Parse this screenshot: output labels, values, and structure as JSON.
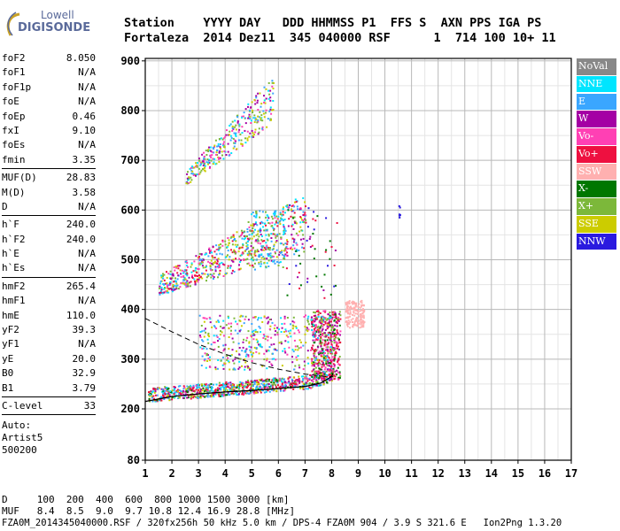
{
  "logo": {
    "line1": "Lowell",
    "line2": "DIGISONDE"
  },
  "header": {
    "labels": "Station    YYYY DAY   DDD HHMMSS P1  FFS S  AXN PPS IGA PS",
    "values": "Fortaleza  2014 Dez11  345 040000 RSF      1  714 100 10+ 11"
  },
  "params_group1": [
    {
      "name": "foF2",
      "value": "8.050"
    },
    {
      "name": "foF1",
      "value": "N/A"
    },
    {
      "name": "foF1p",
      "value": "N/A"
    },
    {
      "name": "foE",
      "value": "N/A"
    },
    {
      "name": "foEp",
      "value": "0.46"
    },
    {
      "name": "fxI",
      "value": "9.10"
    },
    {
      "name": "foEs",
      "value": "N/A"
    },
    {
      "name": "fmin",
      "value": "3.35"
    }
  ],
  "params_group2": [
    {
      "name": "MUF(D)",
      "value": "28.83"
    },
    {
      "name": "M(D)",
      "value": "3.58"
    },
    {
      "name": "D",
      "value": "N/A"
    }
  ],
  "params_group3": [
    {
      "name": "h`F",
      "value": "240.0"
    },
    {
      "name": "h`F2",
      "value": "240.0"
    },
    {
      "name": "h`E",
      "value": "N/A"
    },
    {
      "name": "h`Es",
      "value": "N/A"
    }
  ],
  "params_group4": [
    {
      "name": "hmF2",
      "value": "265.4"
    },
    {
      "name": "hmF1",
      "value": "N/A"
    },
    {
      "name": "hmE",
      "value": "110.0"
    },
    {
      "name": "yF2",
      "value": "39.3"
    },
    {
      "name": "yF1",
      "value": "N/A"
    },
    {
      "name": "yE",
      "value": "20.0"
    },
    {
      "name": "B0",
      "value": "32.9"
    },
    {
      "name": "B1",
      "value": "3.79"
    }
  ],
  "params_group5": [
    {
      "name": "C-level",
      "value": "33"
    }
  ],
  "autoscale": {
    "line1": "Auto:",
    "line2": "Artist5",
    "line3": "500200"
  },
  "footer": {
    "line1": "D     100  200  400  600  800 1000 1500 3000 [km]",
    "line2": "MUF   8.4  8.5  9.0  9.7 10.8 12.4 16.9 28.8 [MHz]",
    "line3": "FZA0M_2014345040000.RSF / 320fx256h 50 kHz 5.0 km / DPS-4 FZA0M 904 / 3.9 S 321.6 E   Ion2Png 1.3.20"
  },
  "colors": {
    "NoVal": "#888888",
    "NNE": "#00e5ff",
    "E": "#3aa6ff",
    "W": "#a400a4",
    "Vo-": "#ff40b4",
    "Vo+": "#ee1040",
    "SSW": "#ffb0b0",
    "X-": "#007700",
    "X+": "#7cb83a",
    "SSE": "#cccc00",
    "NNW": "#2a1adf"
  },
  "chart_data": {
    "type": "scatter",
    "xlim": [
      1,
      17
    ],
    "ylim": [
      80,
      900
    ],
    "x_ticks": [
      1,
      2,
      3,
      4,
      5,
      6,
      7,
      8,
      9,
      10,
      11,
      12,
      13,
      14,
      15,
      16,
      17
    ],
    "y_ticks": [
      80,
      200,
      300,
      400,
      500,
      600,
      700,
      800,
      900
    ],
    "grid": true,
    "legend": [
      "NoVal",
      "NNE",
      "E",
      "W",
      "Vo-",
      "Vo+",
      "SSW",
      "X-",
      "X+",
      "SSE",
      "NNW"
    ],
    "legend_placement": "right",
    "trace_clusters": [
      {
        "name": "F-trace first hop",
        "freq_range": [
          1.0,
          8.0
        ],
        "height_range": [
          215,
          270
        ]
      },
      {
        "name": "F-trace spread cusp",
        "freq_range": [
          7.2,
          8.3
        ],
        "height_range": [
          260,
          400
        ]
      },
      {
        "name": "SSW cluster",
        "freq_range": [
          8.5,
          9.2
        ],
        "height_range": [
          365,
          420
        ]
      },
      {
        "name": "Spread F echoes",
        "freq_range": [
          3.0,
          8.0
        ],
        "height_range": [
          280,
          390
        ]
      },
      {
        "name": "Second hop",
        "freq_range": [
          1.5,
          7.0
        ],
        "height_range": [
          430,
          560
        ]
      },
      {
        "name": "Third hop",
        "freq_range": [
          2.5,
          5.8
        ],
        "height_range": [
          650,
          820
        ]
      },
      {
        "name": "Isolated NNW echoes",
        "freq_range": [
          10.4,
          10.6
        ],
        "height_range": [
          580,
          610
        ]
      }
    ],
    "profile_solid": [
      [
        1.0,
        215
      ],
      [
        2,
        225
      ],
      [
        3,
        230
      ],
      [
        4,
        234
      ],
      [
        5,
        237
      ],
      [
        6,
        241
      ],
      [
        7,
        245
      ],
      [
        7.6,
        252
      ],
      [
        8.0,
        265
      ],
      [
        8.05,
        272
      ]
    ],
    "profile_dashed": [
      [
        1.0,
        382
      ],
      [
        2,
        355
      ],
      [
        3,
        330
      ],
      [
        4,
        310
      ],
      [
        5,
        293
      ],
      [
        6,
        280
      ],
      [
        7,
        270
      ],
      [
        7.8,
        265
      ],
      [
        8.05,
        265
      ]
    ]
  }
}
